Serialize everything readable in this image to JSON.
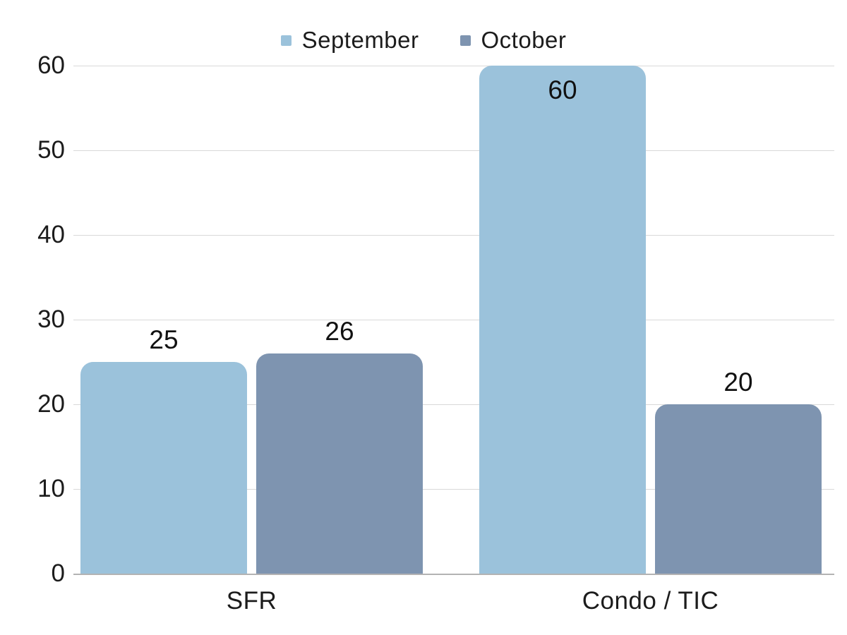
{
  "chart_data": {
    "type": "bar",
    "title": "",
    "categories": [
      "SFR",
      "Condo / TIC"
    ],
    "series": [
      {
        "name": "September",
        "color": "#9BC2DB",
        "values": [
          25,
          60
        ]
      },
      {
        "name": "October",
        "color": "#7E94B0",
        "values": [
          26,
          20
        ]
      }
    ],
    "legend": [
      {
        "label": "September",
        "color": "#9BC2DB"
      },
      {
        "label": "October",
        "color": "#7E94B0"
      }
    ],
    "ylim": [
      0,
      60
    ],
    "yticks": [
      0,
      10,
      20,
      30,
      40,
      50,
      60
    ],
    "grid": "horizontal",
    "legend_position": "top-center",
    "data_labels": [
      {
        "series": "September",
        "category": "SFR",
        "value": 25,
        "placement": "above"
      },
      {
        "series": "October",
        "category": "SFR",
        "value": 26,
        "placement": "above"
      },
      {
        "series": "September",
        "category": "Condo / TIC",
        "value": 60,
        "placement": "inside-top"
      },
      {
        "series": "October",
        "category": "Condo / TIC",
        "value": 20,
        "placement": "above"
      }
    ],
    "colors": {
      "grid": "#d9d9d9",
      "baseline": "#b3b3b3",
      "text": "#1c1c1c",
      "background": "#ffffff"
    }
  }
}
